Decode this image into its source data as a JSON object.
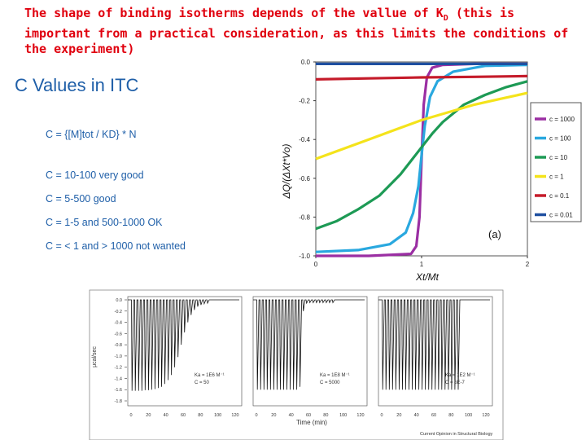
{
  "slide": {
    "title_pre": "The shape of binding isotherms depends of the vallue of K",
    "title_sub": "D",
    "title_post": " (this is important from a practical consideration, as this limits the conditions of the experiment)"
  },
  "itc_box": {
    "heading": "C Values in ITC",
    "formula": "C = {[M]tot / KD} * N",
    "rules": [
      "C = 10-100 very good",
      "C = 5-500 good",
      "C = 1-5 and 500-1000 OK",
      "C = < 1 and > 1000 not wanted"
    ]
  },
  "chart_data": [
    {
      "type": "line",
      "panel_label": "(a)",
      "xlabel": "Xt/Mt",
      "ylabel": "ΔQ/(ΔXt*Vo)",
      "xlim": [
        0,
        2
      ],
      "ylim": [
        -1.0,
        0.0
      ],
      "x_ticks": [
        "0",
        "1",
        "2"
      ],
      "y_ticks": [
        "0.0",
        "-0.2",
        "-0.4",
        "-0.6",
        "-0.8",
        "-1.0"
      ],
      "legend_position": "right",
      "series": [
        {
          "name": "c = 1000",
          "color": "#9b2fa3",
          "x": [
            0,
            0.5,
            0.9,
            0.95,
            0.98,
            1.0,
            1.02,
            1.05,
            1.1,
            1.2,
            1.5,
            2.0
          ],
          "y": [
            -1.0,
            -1.0,
            -0.99,
            -0.95,
            -0.8,
            -0.5,
            -0.22,
            -0.08,
            -0.03,
            -0.015,
            -0.01,
            -0.01
          ]
        },
        {
          "name": "c = 100",
          "color": "#29a8df",
          "x": [
            0,
            0.4,
            0.7,
            0.85,
            0.92,
            0.97,
            1.0,
            1.03,
            1.08,
            1.15,
            1.3,
            1.6,
            2.0
          ],
          "y": [
            -0.98,
            -0.97,
            -0.94,
            -0.88,
            -0.78,
            -0.64,
            -0.48,
            -0.33,
            -0.18,
            -0.1,
            -0.05,
            -0.02,
            -0.015
          ]
        },
        {
          "name": "c = 10",
          "color": "#1d9a55",
          "x": [
            0,
            0.2,
            0.4,
            0.6,
            0.8,
            0.9,
            1.0,
            1.1,
            1.2,
            1.4,
            1.6,
            1.8,
            2.0
          ],
          "y": [
            -0.86,
            -0.82,
            -0.76,
            -0.69,
            -0.58,
            -0.51,
            -0.44,
            -0.37,
            -0.31,
            -0.22,
            -0.17,
            -0.13,
            -0.1
          ]
        },
        {
          "name": "c = 1",
          "color": "#f4e31b",
          "x": [
            0,
            0.25,
            0.5,
            0.75,
            1.0,
            1.25,
            1.5,
            1.75,
            2.0
          ],
          "y": [
            -0.5,
            -0.45,
            -0.4,
            -0.35,
            -0.3,
            -0.26,
            -0.22,
            -0.19,
            -0.16
          ]
        },
        {
          "name": "c = 0.1",
          "color": "#c51b2a",
          "x": [
            0,
            0.5,
            1.0,
            1.5,
            2.0
          ],
          "y": [
            -0.09,
            -0.085,
            -0.08,
            -0.077,
            -0.073
          ]
        },
        {
          "name": "c = 0.01",
          "color": "#1f4fa0",
          "x": [
            0,
            2
          ],
          "y": [
            -0.01,
            -0.01
          ]
        }
      ]
    },
    {
      "type": "line",
      "xlabel": "Time (min)",
      "ylabel": "μcal/sec",
      "y_ticks": [
        "0.0",
        "-0.2",
        "-0.4",
        "-0.6",
        "-0.8",
        "-1.0",
        "-1.2",
        "-1.4",
        "-1.6",
        "-1.8"
      ],
      "x_ticks": [
        "0",
        "20",
        "40",
        "60",
        "80",
        "100",
        "120"
      ],
      "source": "Current Opinion in Structural Biology",
      "panels": [
        {
          "ka_text": "Ka = 1E6 M⁻¹",
          "c_text": "C = 50",
          "peaks": [
            -1.62,
            -1.62,
            -1.62,
            -1.62,
            -1.61,
            -1.61,
            -1.6,
            -1.59,
            -1.57,
            -1.55,
            -1.5,
            -1.43,
            -1.34,
            -1.2,
            -1.02,
            -0.8,
            -0.58,
            -0.4,
            -0.27,
            -0.18,
            -0.12,
            -0.09,
            -0.07,
            -0.06
          ]
        },
        {
          "ka_text": "Ka = 1E8 M⁻¹",
          "c_text": "C = 5000",
          "peaks": [
            -1.6,
            -1.6,
            -1.6,
            -1.6,
            -1.6,
            -1.6,
            -1.6,
            -1.6,
            -1.6,
            -1.6,
            -1.6,
            -1.6,
            -1.6,
            -1.55,
            -0.2,
            -0.06,
            -0.05,
            -0.05,
            -0.05,
            -0.05,
            -0.05,
            -0.05,
            -0.05,
            -0.05
          ]
        },
        {
          "ka_text": "Ka = 1E2 M⁻¹",
          "c_text": "C = 5E-7",
          "peaks": [
            -1.6,
            -1.6,
            -1.6,
            -1.6,
            -1.6,
            -1.6,
            -1.6,
            -1.6,
            -1.6,
            -1.6,
            -1.6,
            -1.6,
            -1.6,
            -1.6,
            -1.6,
            -1.6,
            -1.6,
            -1.6,
            -1.6,
            -1.6,
            -1.6,
            -1.6,
            -1.6,
            -1.6
          ]
        }
      ]
    }
  ]
}
